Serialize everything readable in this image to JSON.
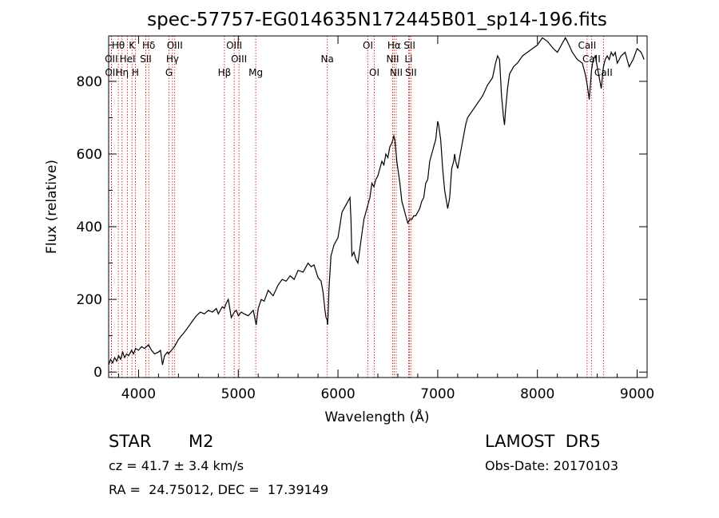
{
  "chart_data": {
    "type": "line",
    "title": "spec-57757-EG014635N172445B01_sp14-196.fits",
    "xlabel": "Wavelength (Å)",
    "ylabel": "Flux (relative)",
    "xlim": [
      3700,
      9100
    ],
    "ylim": [
      -15,
      925
    ],
    "x_ticks": [
      4000,
      5000,
      6000,
      7000,
      8000,
      9000
    ],
    "y_ticks": [
      0,
      200,
      400,
      600,
      800
    ],
    "grid": false,
    "colors": {
      "spectrum": "#000000",
      "line_markers": "#cc0000"
    },
    "series": [
      {
        "x": [
          3700,
          3720,
          3740,
          3760,
          3780,
          3800,
          3820,
          3840,
          3860,
          3880,
          3900,
          3930,
          3950,
          3970,
          4000,
          4030,
          4060,
          4100,
          4130,
          4160,
          4200,
          4220,
          4240,
          4260,
          4290,
          4300,
          4330,
          4360,
          4400,
          4430,
          4460,
          4500,
          4540,
          4580,
          4620,
          4660,
          4700,
          4740,
          4780,
          4800,
          4840,
          4860,
          4880,
          4900,
          4930,
          4960,
          4980,
          5000,
          5030,
          5060,
          5100,
          5150,
          5180,
          5200,
          5230,
          5260,
          5300,
          5350,
          5400,
          5440,
          5480,
          5520,
          5560,
          5600,
          5650,
          5700,
          5730,
          5760,
          5800,
          5830,
          5850,
          5870,
          5880,
          5890,
          5895,
          5900,
          5910,
          5930,
          5960,
          6000,
          6040,
          6080,
          6100,
          6120,
          6130,
          6140,
          6160,
          6180,
          6200,
          6220,
          6240,
          6260,
          6280,
          6300,
          6320,
          6340,
          6360,
          6380,
          6400,
          6420,
          6440,
          6460,
          6480,
          6500,
          6520,
          6540,
          6560,
          6570,
          6580,
          6590,
          6600,
          6620,
          6640,
          6660,
          6680,
          6700,
          6720,
          6740,
          6760,
          6780,
          6800,
          6820,
          6840,
          6860,
          6880,
          6900,
          6920,
          6940,
          6960,
          6980,
          7000,
          7010,
          7030,
          7050,
          7070,
          7100,
          7120,
          7140,
          7160,
          7170,
          7180,
          7200,
          7220,
          7240,
          7260,
          7280,
          7300,
          7350,
          7400,
          7450,
          7500,
          7550,
          7580,
          7600,
          7620,
          7640,
          7660,
          7670,
          7680,
          7700,
          7720,
          7760,
          7800,
          7850,
          7900,
          7950,
          8000,
          8050,
          8100,
          8130,
          8160,
          8200,
          8240,
          8280,
          8300,
          8350,
          8400,
          8450,
          8480,
          8500,
          8520,
          8542,
          8560,
          8580,
          8600,
          8620,
          8640,
          8662,
          8680,
          8700,
          8720,
          8740,
          8760,
          8780,
          8800,
          8840,
          8880,
          8920,
          8960,
          9000,
          9040,
          9070
        ],
        "y": [
          20,
          35,
          25,
          40,
          30,
          45,
          35,
          55,
          40,
          50,
          45,
          60,
          50,
          65,
          60,
          70,
          65,
          75,
          60,
          50,
          55,
          60,
          20,
          45,
          55,
          50,
          60,
          70,
          90,
          100,
          110,
          125,
          140,
          155,
          165,
          160,
          170,
          165,
          175,
          160,
          180,
          175,
          190,
          200,
          150,
          165,
          170,
          155,
          165,
          160,
          155,
          170,
          130,
          175,
          200,
          195,
          225,
          210,
          240,
          255,
          250,
          265,
          255,
          280,
          275,
          300,
          290,
          295,
          260,
          250,
          220,
          170,
          150,
          145,
          130,
          150,
          230,
          320,
          350,
          370,
          440,
          460,
          470,
          480,
          420,
          320,
          330,
          310,
          300,
          340,
          380,
          420,
          440,
          460,
          480,
          520,
          510,
          530,
          540,
          560,
          580,
          570,
          600,
          590,
          620,
          630,
          650,
          640,
          610,
          580,
          560,
          520,
          470,
          450,
          430,
          410,
          420,
          420,
          430,
          430,
          440,
          450,
          470,
          480,
          520,
          530,
          580,
          600,
          620,
          640,
          690,
          680,
          640,
          560,
          500,
          450,
          480,
          560,
          580,
          600,
          580,
          560,
          590,
          620,
          650,
          680,
          700,
          720,
          740,
          760,
          790,
          810,
          850,
          870,
          860,
          760,
          700,
          680,
          720,
          780,
          820,
          840,
          850,
          870,
          880,
          890,
          900,
          920,
          910,
          900,
          890,
          880,
          900,
          920,
          910,
          880,
          860,
          850,
          820,
          790,
          750,
          830,
          860,
          870,
          840,
          810,
          780,
          840,
          860,
          870,
          860,
          880,
          870,
          880,
          850,
          870,
          880,
          840,
          860,
          890,
          880,
          860
        ]
      }
    ],
    "line_markers": [
      {
        "label": "H&#952;",
        "wavelength": 3797,
        "row": 1
      },
      {
        "label": "OII",
        "wavelength": 3727,
        "row": 2
      },
      {
        "label": "OII",
        "wavelength": 3729,
        "row": 3
      },
      {
        "label": "Hη",
        "wavelength": 3835,
        "row": 3
      },
      {
        "label": "HeI",
        "wavelength": 3889,
        "row": 2
      },
      {
        "label": "K",
        "wavelength": 3934,
        "row": 1
      },
      {
        "label": "H",
        "wavelength": 3968,
        "row": 3
      },
      {
        "label": "Hδ",
        "wavelength": 4102,
        "row": 1
      },
      {
        "label": "SII",
        "wavelength": 4072,
        "row": 2
      },
      {
        "label": "OIII",
        "wavelength": 4363,
        "row": 1
      },
      {
        "label": "Hγ",
        "wavelength": 4340,
        "row": 2
      },
      {
        "label": "G",
        "wavelength": 4305,
        "row": 3
      },
      {
        "label": "Hβ",
        "wavelength": 4861,
        "row": 3
      },
      {
        "label": "OIII",
        "wavelength": 4959,
        "row": 1
      },
      {
        "label": "OIII",
        "wavelength": 5007,
        "row": 2
      },
      {
        "label": "Mg",
        "wavelength": 5175,
        "row": 3
      },
      {
        "label": "Na",
        "wavelength": 5893,
        "row": 2
      },
      {
        "label": "OI",
        "wavelength": 6300,
        "row": 1
      },
      {
        "label": "OI",
        "wavelength": 6364,
        "row": 3
      },
      {
        "label": "Hα",
        "wavelength": 6563,
        "row": 1
      },
      {
        "label": "NII",
        "wavelength": 6548,
        "row": 2
      },
      {
        "label": "NII",
        "wavelength": 6584,
        "row": 3
      },
      {
        "label": "SII",
        "wavelength": 6717,
        "row": 1
      },
      {
        "label": "Li",
        "wavelength": 6708,
        "row": 2
      },
      {
        "label": "SII",
        "wavelength": 6731,
        "row": 3
      },
      {
        "label": "CaII",
        "wavelength": 8498,
        "row": 1
      },
      {
        "label": "CaII",
        "wavelength": 8542,
        "row": 2
      },
      {
        "label": "CaII",
        "wavelength": 8662,
        "row": 3
      }
    ]
  },
  "footer": {
    "object_class": "STAR",
    "subclass": "M2",
    "redshift": "cz = 41.7 ± 3.4 km/s",
    "coords": "RA =  24.75012, DEC =  17.39149",
    "survey": "LAMOST  DR5",
    "obs_date": "Obs-Date: 20170103"
  }
}
